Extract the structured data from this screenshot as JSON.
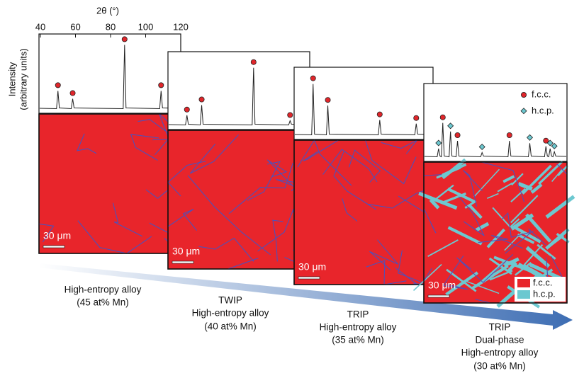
{
  "axis": {
    "label": "2θ (°)",
    "xlim": [
      40,
      120
    ],
    "xticks": [
      40,
      60,
      80,
      100,
      120
    ],
    "ylabel": [
      "Intensity",
      "(arbitrary units)"
    ]
  },
  "panels": [
    {
      "caption": [
        "High-entropy alloy",
        "(45 at% Mn)"
      ],
      "scale_bar": "30 μm",
      "fcc_peaks": [
        [
          50,
          0.22
        ],
        [
          58.4,
          0.12
        ],
        [
          88,
          0.8
        ],
        [
          108.8,
          0.22
        ]
      ],
      "hcp_peaks": []
    },
    {
      "caption": [
        "TWIP",
        "High-entropy alloy",
        "(40 at% Mn)"
      ],
      "scale_bar": "30 μm",
      "fcc_peaks": [
        [
          50,
          0.12
        ],
        [
          58.4,
          0.25
        ],
        [
          88,
          0.73
        ],
        [
          108.8,
          0.05
        ]
      ],
      "hcp_peaks": []
    },
    {
      "caption": [
        "TRIP",
        "High-entropy alloy",
        "(35 at% Mn)"
      ],
      "scale_bar": "30 μm",
      "fcc_peaks": [
        [
          50,
          0.7
        ],
        [
          58.4,
          0.4
        ],
        [
          88,
          0.2
        ],
        [
          108.8,
          0.15
        ]
      ],
      "hcp_peaks": []
    },
    {
      "caption": [
        "TRIP",
        "Dual-phase",
        "High-entropy alloy",
        "(30 at% Mn)"
      ],
      "scale_bar": "30 μm",
      "fcc_peaks": [
        [
          50,
          0.43
        ],
        [
          58.4,
          0.2
        ],
        [
          88,
          0.2
        ],
        [
          108.8,
          0.13
        ]
      ],
      "hcp_peaks": [
        [
          47.6,
          0.1
        ],
        [
          54.4,
          0.32
        ],
        [
          72.4,
          0.05
        ],
        [
          99.6,
          0.17
        ],
        [
          111.2,
          0.1
        ],
        [
          113.6,
          0.06
        ]
      ]
    }
  ],
  "xrd_legend": [
    "f.c.c.",
    "h.c.p."
  ],
  "map_legend": [
    "f.c.c.",
    "h.c.p."
  ]
}
